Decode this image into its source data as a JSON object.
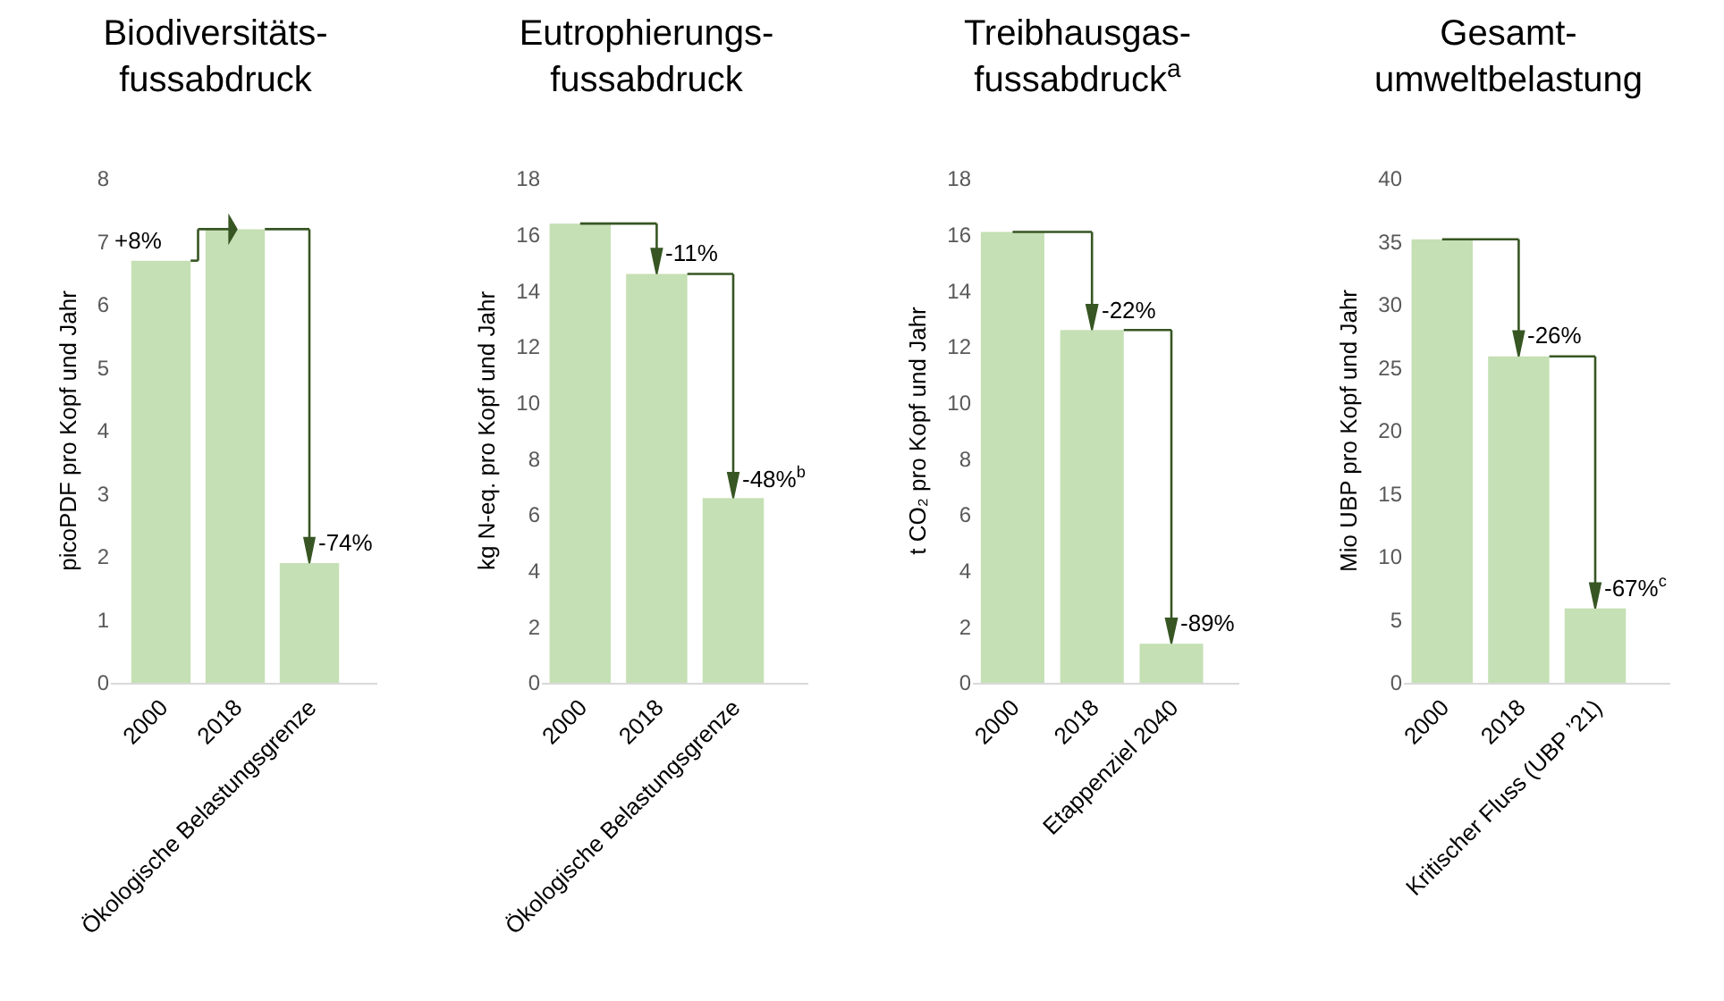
{
  "chart_data": [
    {
      "type": "bar",
      "title": "Biodiversitäts-\nfussabdruck",
      "ylabel": "picoPDF pro Kopf und Jahr",
      "categories": [
        "2000",
        "2018",
        "Ökologische Belastungsgrenze"
      ],
      "values": [
        6.7,
        7.2,
        1.9
      ],
      "color": "#c5e0b4",
      "ylim": [
        0,
        8
      ],
      "yticks": [
        0,
        1,
        2,
        3,
        4,
        5,
        6,
        7,
        8
      ],
      "annotations": [
        {
          "text": "+8%",
          "x": "2000",
          "y": 6.7
        },
        {
          "text": "-74%",
          "x": "Ökologische Belastungsgrenze",
          "y": 1.9
        }
      ]
    },
    {
      "type": "bar",
      "title": "Eutrophierungs-\nfussabdruck",
      "ylabel": "kg N-eq. pro Kopf und Jahr",
      "categories": [
        "2000",
        "2018",
        "Ökologische Belastungsgrenze"
      ],
      "values": [
        16.4,
        14.6,
        6.6
      ],
      "color": "#c5e0b4",
      "ylim": [
        0,
        18
      ],
      "yticks": [
        0,
        2,
        4,
        6,
        8,
        10,
        12,
        14,
        16,
        18
      ],
      "annotations": [
        {
          "text": "-11%",
          "x": "2018",
          "y": 14.6
        },
        {
          "text": "-48%$^{b}$",
          "x": "Ökologische Belastungsgrenze",
          "y": 6.6
        }
      ]
    },
    {
      "type": "bar",
      "title": "Treibhausgas-\nfussabdruck$^{a}$",
      "ylabel": "t CO₂ pro Kopf und Jahr",
      "categories": [
        "2000",
        "2018",
        "Etappenziel 2040"
      ],
      "values": [
        16.1,
        12.6,
        1.4
      ],
      "color": "#c5e0b4",
      "ylim": [
        0,
        18
      ],
      "yticks": [
        0,
        2,
        4,
        6,
        8,
        10,
        12,
        14,
        16,
        18
      ],
      "annotations": [
        {
          "text": "-22%",
          "x": "2018",
          "y": 12.6
        },
        {
          "text": "-89%",
          "x": "Etappenziel 2040",
          "y": 1.4
        }
      ]
    },
    {
      "type": "bar",
      "title": "Gesamt-\numweltbelastung",
      "ylabel": "Mio UBP pro Kopf und Jahr",
      "categories": [
        "2000",
        "2018",
        "Kritischer Fluss (UBP ’21)"
      ],
      "values": [
        35.2,
        25.9,
        5.9
      ],
      "color": "#c5e0b4",
      "ylim": [
        0,
        40
      ],
      "yticks": [
        0,
        5,
        10,
        15,
        20,
        25,
        30,
        35,
        40
      ],
      "annotations": [
        {
          "text": "-26%",
          "x": "2018",
          "y": 25.9
        },
        {
          "text": "-67%$^{c}$",
          "x": "Kritischer Fluss (UBP ’21)",
          "y": 5.9
        }
      ]
    }
  ]
}
